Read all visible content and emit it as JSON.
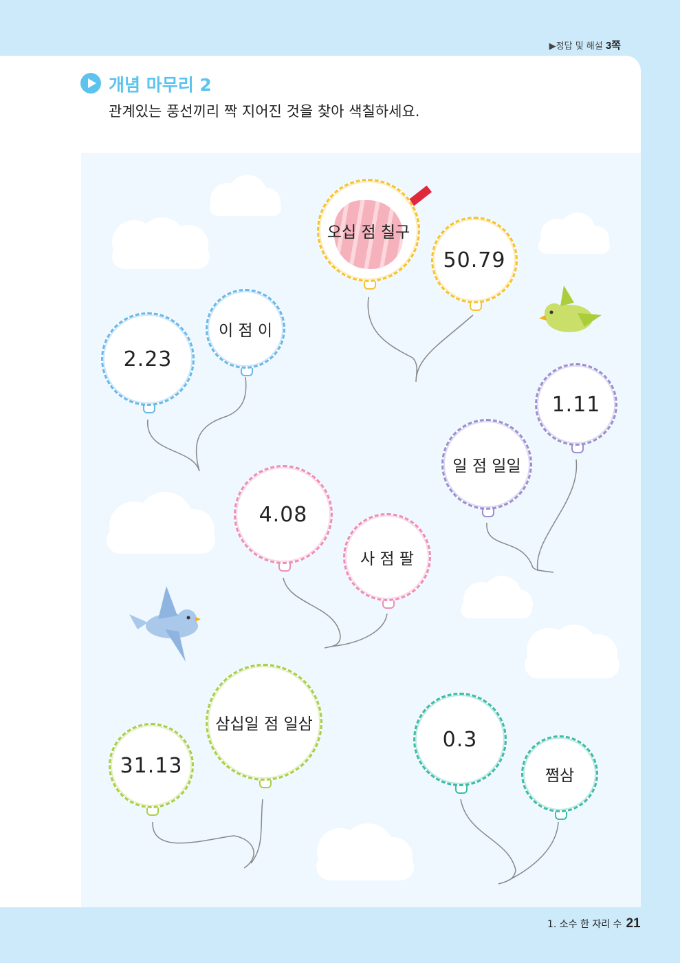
{
  "header": {
    "answer_ref_prefix": "▶정답 및 해설 ",
    "answer_ref_page": "3쪽"
  },
  "section": {
    "title": "개념 마무리 2",
    "instruction": "관계있는 풍선끼리 짝 지어진 것을 찾아 색칠하세요."
  },
  "balloons": [
    {
      "text": "오십 점 칠구",
      "color": "#f5c330",
      "colored_in": true
    },
    {
      "text": "50.79",
      "color": "#f5c330"
    },
    {
      "text": "2.23",
      "color": "#6ab8e8"
    },
    {
      "text": "이 점 이",
      "color": "#6ab8e8"
    },
    {
      "text": "1.11",
      "color": "#9a8fd0"
    },
    {
      "text": "일 점 일일",
      "color": "#9a8fd0"
    },
    {
      "text": "4.08",
      "color": "#ec8fb8"
    },
    {
      "text": "사 점 팔",
      "color": "#ec8fb8"
    },
    {
      "text": "31.13",
      "color": "#a8cf48"
    },
    {
      "text": "삼십일 점 일삼",
      "color": "#a8cf48"
    },
    {
      "text": "0.3",
      "color": "#3cbba8"
    },
    {
      "text": "쩜삼",
      "color": "#3cbba8"
    }
  ],
  "footer": {
    "chapter": "1. 소수 한 자리 수",
    "page": "21"
  },
  "colors": {
    "accent": "#5cc3ee",
    "background": "#cdeafa",
    "sky": "#eef8fe"
  }
}
